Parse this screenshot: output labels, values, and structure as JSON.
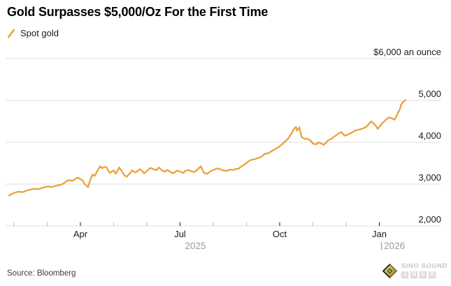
{
  "header": {
    "title": "Gold Surpasses $5,000/Oz For the First Time",
    "legend": {
      "label": "Spot gold",
      "swatch_color": "#E9A23B",
      "swatch_icon": "orange-slash"
    }
  },
  "footer": {
    "source": "Source: Bloomberg"
  },
  "logo": {
    "name": "SINO SOUND",
    "cn": "漢聲集團",
    "cn_chars": [
      "漢",
      "聲",
      "集",
      "團"
    ],
    "diamond_colors": {
      "dark": "#1b1b1b",
      "gold_light": "#f1d98b",
      "gold_dark": "#b08420",
      "green": "#3a6f36"
    }
  },
  "colors": {
    "background": "#ffffff",
    "line": "#E9A23B",
    "gridline": "#dcdcdc",
    "axis_text": "#1a1a1a",
    "year_text": "#9b9b9b",
    "minor_tick": "#b9b9b9",
    "major_tick": "#1a1a1a"
  },
  "chart_data": {
    "type": "line",
    "title": "Gold Surpasses $5,000/Oz For the First Time",
    "unit_note": "$6,000 an ounce",
    "xlabel": "",
    "ylabel": "",
    "ylim": [
      2000,
      6000
    ],
    "grid": "horizontal",
    "legend_position": "top-left",
    "yticks": [
      {
        "v": 2000,
        "label": "2,000"
      },
      {
        "v": 3000,
        "label": "3,000"
      },
      {
        "v": 4000,
        "label": "4,000"
      },
      {
        "v": 5000,
        "label": "5,000"
      },
      {
        "v": 6000,
        "label": "$6,000 an ounce"
      }
    ],
    "xticks": [
      {
        "date": "2025-02-01",
        "label": "",
        "minor": true
      },
      {
        "date": "2025-03-01",
        "label": "",
        "minor": true
      },
      {
        "date": "2025-04-01",
        "label": "Apr",
        "minor": false
      },
      {
        "date": "2025-05-01",
        "label": "",
        "minor": true
      },
      {
        "date": "2025-06-01",
        "label": "",
        "minor": true
      },
      {
        "date": "2025-07-01",
        "label": "Jul",
        "minor": false
      },
      {
        "date": "2025-08-01",
        "label": "",
        "minor": true
      },
      {
        "date": "2025-09-01",
        "label": "",
        "minor": true
      },
      {
        "date": "2025-10-01",
        "label": "Oct",
        "minor": false
      },
      {
        "date": "2025-11-01",
        "label": "",
        "minor": true
      },
      {
        "date": "2025-12-01",
        "label": "",
        "minor": true
      },
      {
        "date": "2026-01-01",
        "label": "Jan",
        "minor": false
      }
    ],
    "year_labels": [
      {
        "label": "2025",
        "date": "2025-07-15",
        "anchor": "middle",
        "bar": false
      },
      {
        "label": "2026",
        "date": "2026-01-02",
        "anchor": "start",
        "bar": true
      }
    ],
    "series": [
      {
        "name": "Spot gold",
        "color": "#E9A23B",
        "points": [
          [
            "2025-01-27",
            2730
          ],
          [
            "2025-02-01",
            2790
          ],
          [
            "2025-02-05",
            2820
          ],
          [
            "2025-02-09",
            2810
          ],
          [
            "2025-02-14",
            2860
          ],
          [
            "2025-02-20",
            2890
          ],
          [
            "2025-02-24",
            2880
          ],
          [
            "2025-02-28",
            2920
          ],
          [
            "2025-03-02",
            2950
          ],
          [
            "2025-03-05",
            2930
          ],
          [
            "2025-03-09",
            2960
          ],
          [
            "2025-03-12",
            2980
          ],
          [
            "2025-03-15",
            3000
          ],
          [
            "2025-03-18",
            3060
          ],
          [
            "2025-03-21",
            3100
          ],
          [
            "2025-03-24",
            3080
          ],
          [
            "2025-03-29",
            3160
          ],
          [
            "2025-04-03",
            3090
          ],
          [
            "2025-04-05",
            3000
          ],
          [
            "2025-04-08",
            2930
          ],
          [
            "2025-04-10",
            3100
          ],
          [
            "2025-04-12",
            3230
          ],
          [
            "2025-04-14",
            3200
          ],
          [
            "2025-04-19",
            3430
          ],
          [
            "2025-04-21",
            3380
          ],
          [
            "2025-04-23",
            3420
          ],
          [
            "2025-04-25",
            3400
          ],
          [
            "2025-04-28",
            3270
          ],
          [
            "2025-05-01",
            3330
          ],
          [
            "2025-05-03",
            3250
          ],
          [
            "2025-05-06",
            3400
          ],
          [
            "2025-05-08",
            3330
          ],
          [
            "2025-05-11",
            3210
          ],
          [
            "2025-05-13",
            3180
          ],
          [
            "2025-05-16",
            3260
          ],
          [
            "2025-05-18",
            3330
          ],
          [
            "2025-05-21",
            3280
          ],
          [
            "2025-05-25",
            3360
          ],
          [
            "2025-05-27",
            3320
          ],
          [
            "2025-05-29",
            3260
          ],
          [
            "2025-06-02",
            3340
          ],
          [
            "2025-06-04",
            3390
          ],
          [
            "2025-06-07",
            3360
          ],
          [
            "2025-06-10",
            3340
          ],
          [
            "2025-06-12",
            3400
          ],
          [
            "2025-06-15",
            3330
          ],
          [
            "2025-06-17",
            3300
          ],
          [
            "2025-06-20",
            3340
          ],
          [
            "2025-06-22",
            3300
          ],
          [
            "2025-06-25",
            3260
          ],
          [
            "2025-06-28",
            3310
          ],
          [
            "2025-06-29",
            3330
          ],
          [
            "2025-07-01",
            3300
          ],
          [
            "2025-07-04",
            3270
          ],
          [
            "2025-07-06",
            3320
          ],
          [
            "2025-07-09",
            3340
          ],
          [
            "2025-07-11",
            3310
          ],
          [
            "2025-07-14",
            3290
          ],
          [
            "2025-07-17",
            3350
          ],
          [
            "2025-07-20",
            3430
          ],
          [
            "2025-07-23",
            3270
          ],
          [
            "2025-07-26",
            3250
          ],
          [
            "2025-07-29",
            3310
          ],
          [
            "2025-08-01",
            3340
          ],
          [
            "2025-08-03",
            3360
          ],
          [
            "2025-08-05",
            3380
          ],
          [
            "2025-08-08",
            3350
          ],
          [
            "2025-08-10",
            3330
          ],
          [
            "2025-08-14",
            3320
          ],
          [
            "2025-08-16",
            3350
          ],
          [
            "2025-08-19",
            3340
          ],
          [
            "2025-08-21",
            3360
          ],
          [
            "2025-08-24",
            3370
          ],
          [
            "2025-08-27",
            3430
          ],
          [
            "2025-08-30",
            3480
          ],
          [
            "2025-09-02",
            3530
          ],
          [
            "2025-09-05",
            3580
          ],
          [
            "2025-09-09",
            3600
          ],
          [
            "2025-09-12",
            3630
          ],
          [
            "2025-09-15",
            3660
          ],
          [
            "2025-09-18",
            3730
          ],
          [
            "2025-09-21",
            3740
          ],
          [
            "2025-09-24",
            3790
          ],
          [
            "2025-09-28",
            3850
          ],
          [
            "2025-09-30",
            3880
          ],
          [
            "2025-10-03",
            3950
          ],
          [
            "2025-10-06",
            4020
          ],
          [
            "2025-10-09",
            4100
          ],
          [
            "2025-10-12",
            4220
          ],
          [
            "2025-10-14",
            4320
          ],
          [
            "2025-10-16",
            4370
          ],
          [
            "2025-10-17",
            4280
          ],
          [
            "2025-10-19",
            4360
          ],
          [
            "2025-10-21",
            4130
          ],
          [
            "2025-10-24",
            4080
          ],
          [
            "2025-10-26",
            4090
          ],
          [
            "2025-10-29",
            4050
          ],
          [
            "2025-11-01",
            3970
          ],
          [
            "2025-11-04",
            3950
          ],
          [
            "2025-11-06",
            4000
          ],
          [
            "2025-11-09",
            3970
          ],
          [
            "2025-11-11",
            3940
          ],
          [
            "2025-11-13",
            3990
          ],
          [
            "2025-11-15",
            4050
          ],
          [
            "2025-11-18",
            4080
          ],
          [
            "2025-11-20",
            4130
          ],
          [
            "2025-11-23",
            4180
          ],
          [
            "2025-11-27",
            4250
          ],
          [
            "2025-11-30",
            4160
          ],
          [
            "2025-12-03",
            4190
          ],
          [
            "2025-12-06",
            4230
          ],
          [
            "2025-12-09",
            4280
          ],
          [
            "2025-12-12",
            4300
          ],
          [
            "2025-12-15",
            4320
          ],
          [
            "2025-12-17",
            4340
          ],
          [
            "2025-12-20",
            4380
          ],
          [
            "2025-12-22",
            4450
          ],
          [
            "2025-12-24",
            4500
          ],
          [
            "2025-12-28",
            4410
          ],
          [
            "2025-12-30",
            4320
          ],
          [
            "2026-01-03",
            4440
          ],
          [
            "2026-01-05",
            4490
          ],
          [
            "2026-01-07",
            4540
          ],
          [
            "2026-01-10",
            4600
          ],
          [
            "2026-01-13",
            4570
          ],
          [
            "2026-01-15",
            4540
          ],
          [
            "2026-01-18",
            4700
          ],
          [
            "2026-01-20",
            4800
          ],
          [
            "2026-01-21",
            4900
          ],
          [
            "2026-01-23",
            4970
          ],
          [
            "2026-01-25",
            5010
          ]
        ]
      }
    ]
  }
}
